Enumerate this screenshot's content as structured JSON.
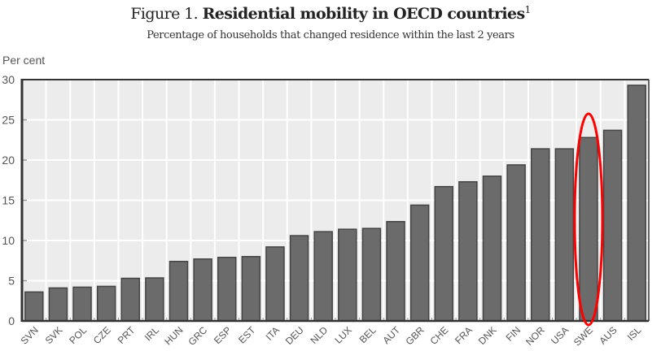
{
  "chart_data": {
    "type": "bar",
    "figure_label": "Figure 1.",
    "title": "Residential mobility in OECD countries",
    "title_footnote": "1",
    "subtitle": "Percentage of households that changed residence within the last 2 years",
    "ylabel": "Per cent",
    "xlabel": "",
    "ylim": [
      0,
      30
    ],
    "yticks": [
      0,
      5,
      10,
      15,
      20,
      25,
      30
    ],
    "grid": true,
    "categories": [
      "SVN",
      "SVK",
      "POL",
      "CZE",
      "PRT",
      "IRL",
      "HUN",
      "GRC",
      "ESP",
      "EST",
      "ITA",
      "DEU",
      "NLD",
      "LUX",
      "BEL",
      "AUT",
      "GBR",
      "CHE",
      "FRA",
      "DNK",
      "FIN",
      "NOR",
      "USA",
      "SWE",
      "AUS",
      "ISL"
    ],
    "values": [
      3.6,
      4.1,
      4.2,
      4.3,
      5.3,
      5.35,
      7.4,
      7.7,
      7.9,
      8.0,
      9.2,
      10.6,
      11.1,
      11.4,
      11.5,
      12.35,
      14.4,
      16.7,
      17.3,
      18.0,
      19.4,
      21.4,
      21.4,
      22.8,
      23.7,
      29.3
    ],
    "highlight": {
      "category": "SWE",
      "shape": "ellipse",
      "color": "#ff0000"
    },
    "colors": {
      "bar_fill": "#6b6b6b",
      "bar_stroke": "#444444",
      "plot_bg": "#ececec",
      "grid": "#ffffff",
      "axis": "#333333"
    }
  }
}
